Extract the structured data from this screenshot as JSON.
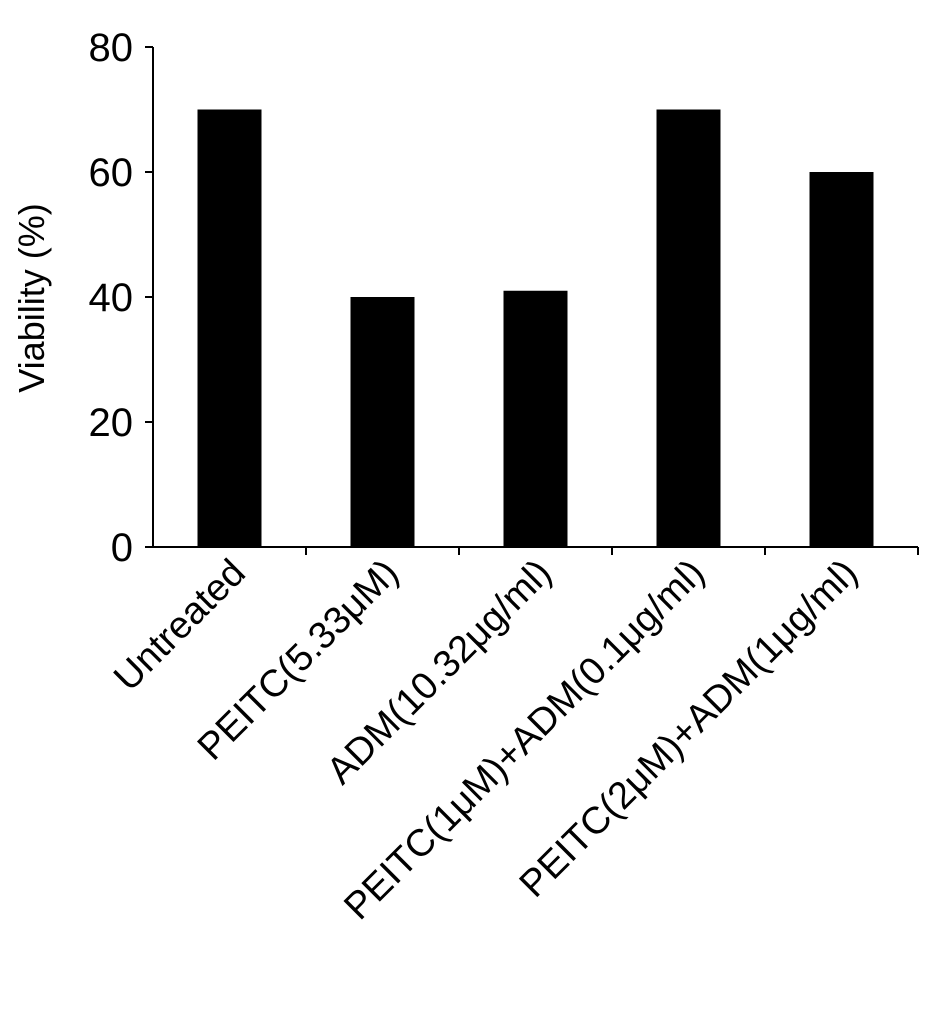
{
  "chart_data": {
    "type": "bar",
    "title": "",
    "xlabel": "",
    "ylabel": "Viability (%)",
    "ylim": [
      0,
      80
    ],
    "yticks": [
      0,
      20,
      40,
      60,
      80
    ],
    "grid": false,
    "categories": [
      "Untreated",
      "PEITC(5.33μM)",
      "ADM(10.32μg/ml)",
      "PEITC(1μM)+ADM(0.1μg/ml)",
      "PEITC(2μM)+ADM(1μg/ml)"
    ],
    "values": [
      70,
      40,
      41,
      70,
      60
    ],
    "colors": {
      "bar": "#000000",
      "axis": "#000000"
    }
  }
}
